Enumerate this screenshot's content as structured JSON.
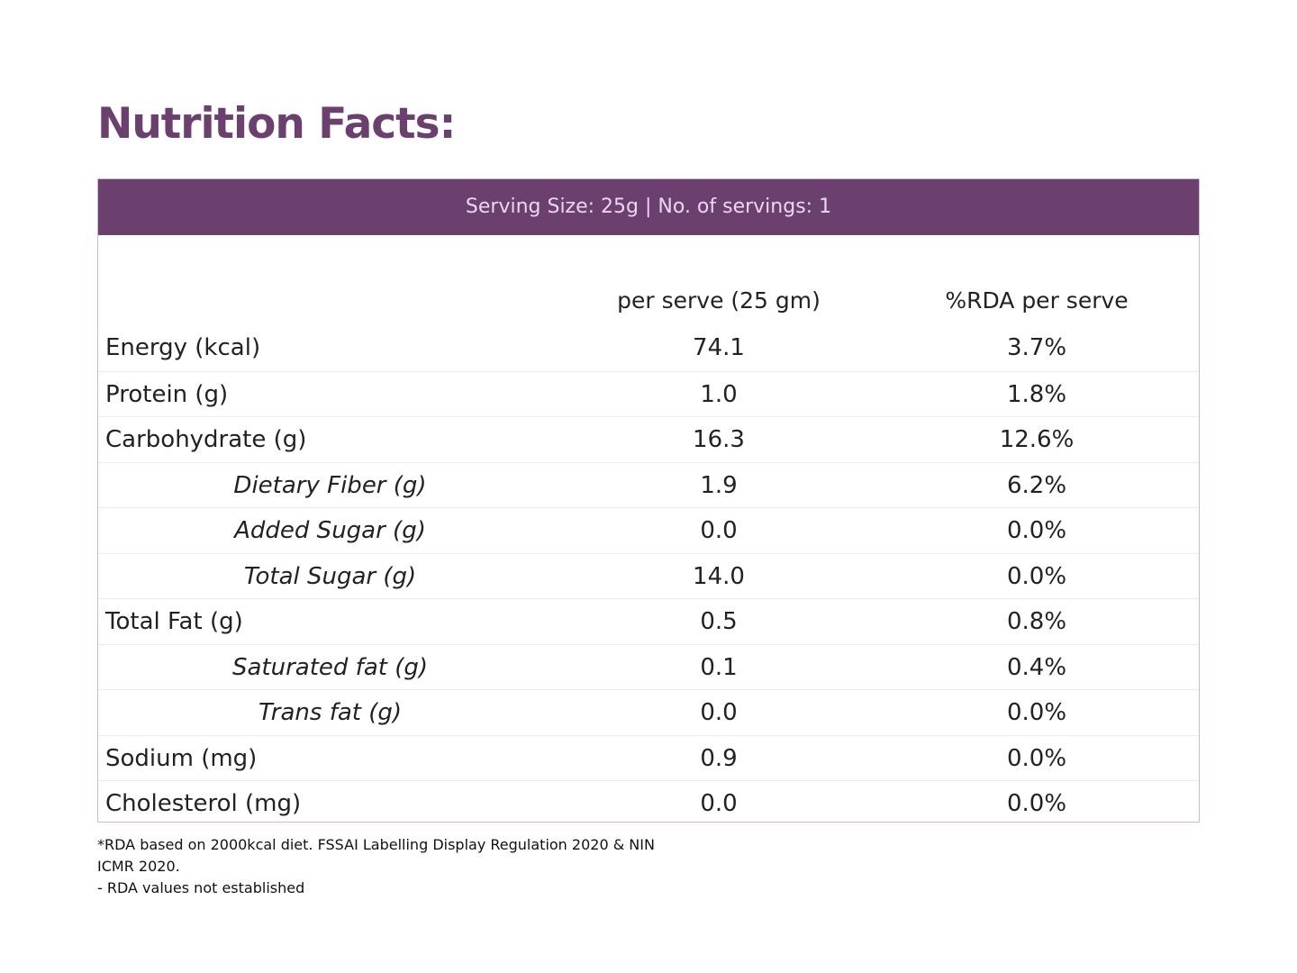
{
  "title": "Nutrition Facts:",
  "serving_info": "Serving Size: 25g | No. of servings: 1",
  "columns": {
    "per_serve": "per serve (25 gm)",
    "rda": "%RDA per serve"
  },
  "rows": [
    {
      "name": "Energy (kcal)",
      "per_serve": "74.1",
      "rda": "3.7%",
      "sub": false
    },
    {
      "name": "Protein (g)",
      "per_serve": "1.0",
      "rda": "1.8%",
      "sub": false
    },
    {
      "name": "Carbohydrate (g)",
      "per_serve": "16.3",
      "rda": "12.6%",
      "sub": false
    },
    {
      "name": "Dietary Fiber (g)",
      "per_serve": "1.9",
      "rda": "6.2%",
      "sub": true
    },
    {
      "name": "Added Sugar (g)",
      "per_serve": "0.0",
      "rda": "0.0%",
      "sub": true
    },
    {
      "name": "Total Sugar (g)",
      "per_serve": "14.0",
      "rda": "0.0%",
      "sub": true
    },
    {
      "name": "Total Fat (g)",
      "per_serve": "0.5",
      "rda": "0.8%",
      "sub": false
    },
    {
      "name": "Saturated fat (g)",
      "per_serve": "0.1",
      "rda": "0.4%",
      "sub": true
    },
    {
      "name": "Trans fat (g)",
      "per_serve": "0.0",
      "rda": "0.0%",
      "sub": true
    },
    {
      "name": "Sodium (mg)",
      "per_serve": "0.9",
      "rda": "0.0%",
      "sub": false
    },
    {
      "name": "Cholesterol (mg)",
      "per_serve": "0.0",
      "rda": "0.0%",
      "sub": false
    }
  ],
  "footnotes": {
    "line1": "*RDA based on 2000kcal diet. FSSAI Labelling Display Regulation 2020 & NIN ICMR 2020.",
    "line2": "- RDA values not established"
  },
  "colors": {
    "brand": "#6b3f6e",
    "band_text": "#ead8f0",
    "border": "#cdb9d1"
  }
}
